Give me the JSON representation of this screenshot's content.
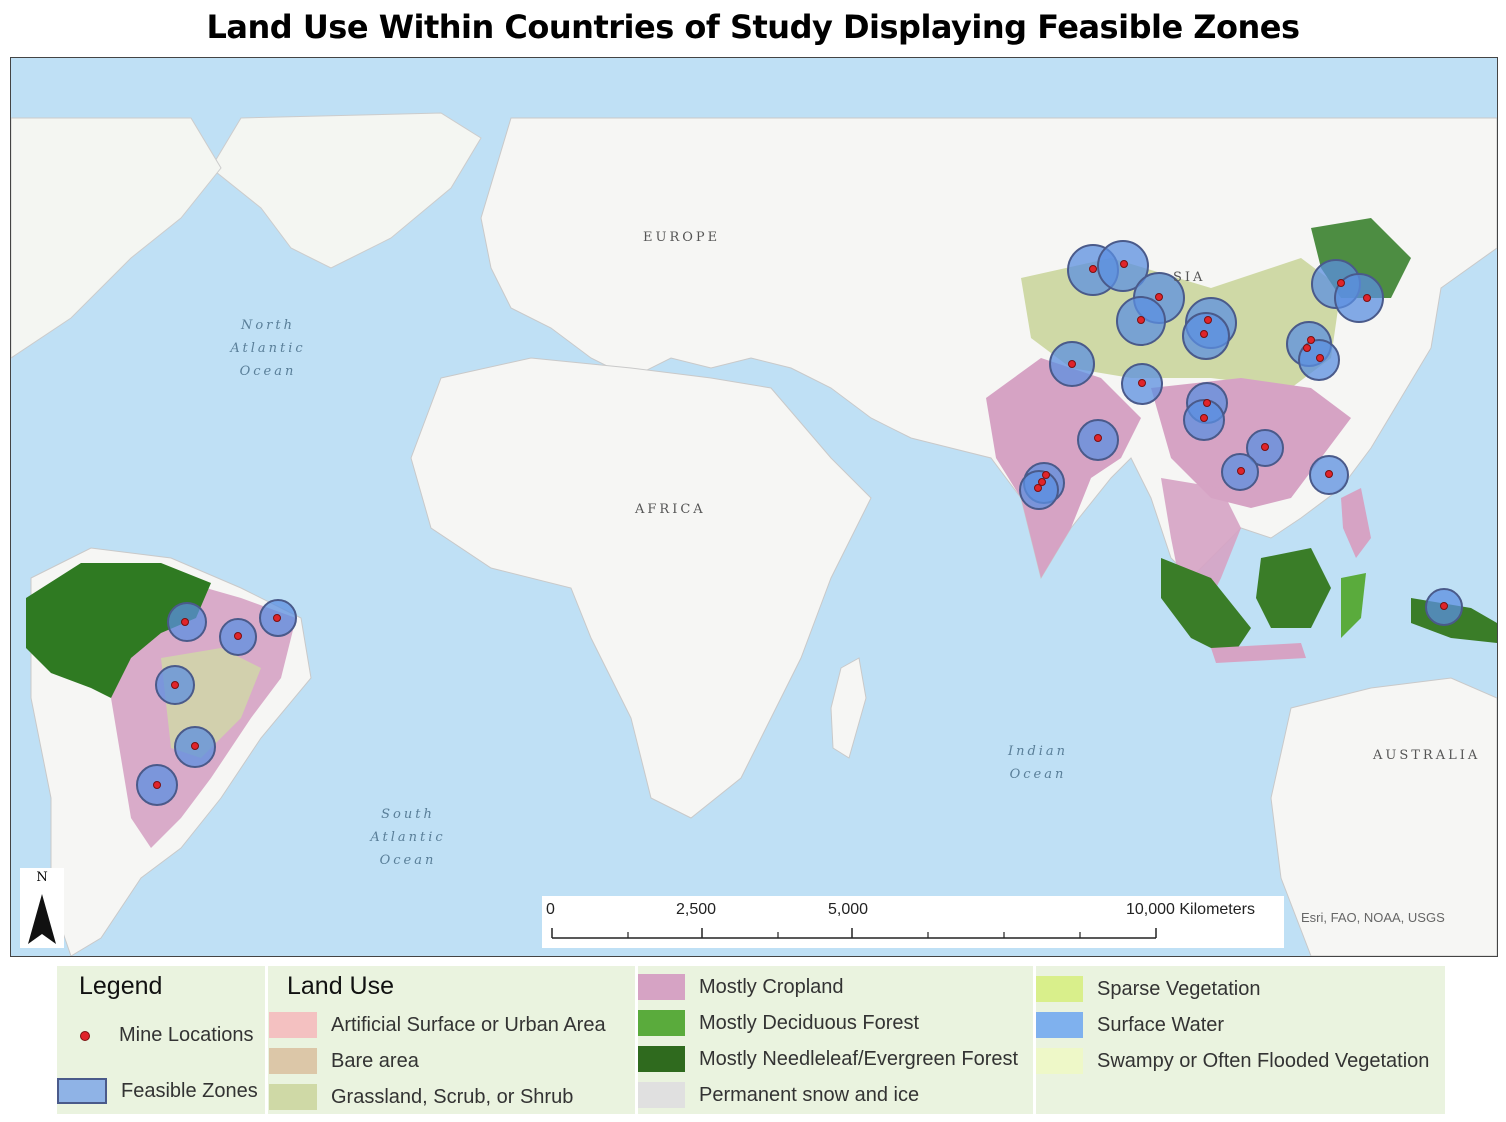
{
  "title": "Land Use Within Countries of Study Displaying Feasible Zones",
  "colors": {
    "ocean": "#bfe0f5",
    "land": "#f6f6f4",
    "feasible_zone_fill": "#5b8fe0",
    "feasible_zone_stroke": "#4a5a8a",
    "mine_marker": "#e0242a",
    "cropland": "#d6a3c4",
    "forest": "#2f7a22",
    "grassland": "#cfd9a6"
  },
  "map": {
    "continent_labels": [
      "EUROPE",
      "AFRICA",
      "AUSTRALIA",
      "SIA"
    ],
    "ocean_labels": [
      {
        "lines": [
          "North",
          "Atlantic",
          "Ocean"
        ]
      },
      {
        "lines": [
          "South",
          "Atlantic",
          "Ocean"
        ]
      },
      {
        "lines": [
          "Indian",
          "Ocean"
        ]
      }
    ],
    "north_arrow_label": "N",
    "scalebar": {
      "ticks": [
        "0",
        "2,500",
        "5,000",
        "10,000 Kilometers"
      ]
    },
    "attribution": "Esri, FAO, NOAA, USGS"
  },
  "legend": {
    "heading": "Legend",
    "items": [
      {
        "label": "Mine Locations",
        "symbol": "red-dot"
      },
      {
        "label": "Feasible Zones",
        "symbol": "blue-box"
      }
    ]
  },
  "land_use": {
    "heading": "Land Use",
    "items": [
      {
        "label": "Artificial Surface or Urban Area",
        "color": "#f4c1c1"
      },
      {
        "label": "Bare area",
        "color": "#dcc7a8"
      },
      {
        "label": "Grassland, Scrub, or Shrub",
        "color": "#cfd9a6"
      },
      {
        "label": "Mostly Cropland",
        "color": "#d6a3c4"
      },
      {
        "label": "Mostly Deciduous Forest",
        "color": "#5aab3c"
      },
      {
        "label": "Mostly Needleleaf/Evergreen Forest",
        "color": "#2f6a1e"
      },
      {
        "label": "Permanent snow and ice",
        "color": "#e0e0e0"
      },
      {
        "label": "Sparse Vegetation",
        "color": "#d9ef8b"
      },
      {
        "label": "Surface Water",
        "color": "#7fb1ee"
      },
      {
        "label": "Swampy or Often Flooded Vegetation",
        "color": "#eef8c8"
      }
    ]
  }
}
